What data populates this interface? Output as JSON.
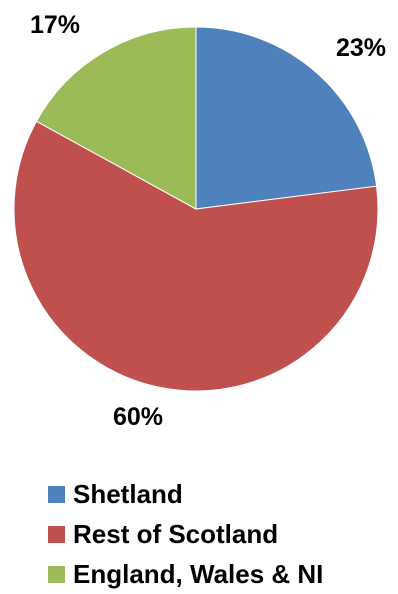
{
  "chart_data": {
    "type": "pie",
    "title": "",
    "slices": [
      {
        "label": "Shetland",
        "value": 23,
        "display": "23%",
        "color": "#4f81bd"
      },
      {
        "label": "Rest of Scotland",
        "value": 60,
        "display": "60%",
        "color": "#c0504d"
      },
      {
        "label": "England, Wales & NI",
        "value": 17,
        "display": "17%",
        "color": "#9bbb59"
      }
    ],
    "legend_position": "bottom",
    "start_angle": "12 o'clock, clockwise"
  }
}
